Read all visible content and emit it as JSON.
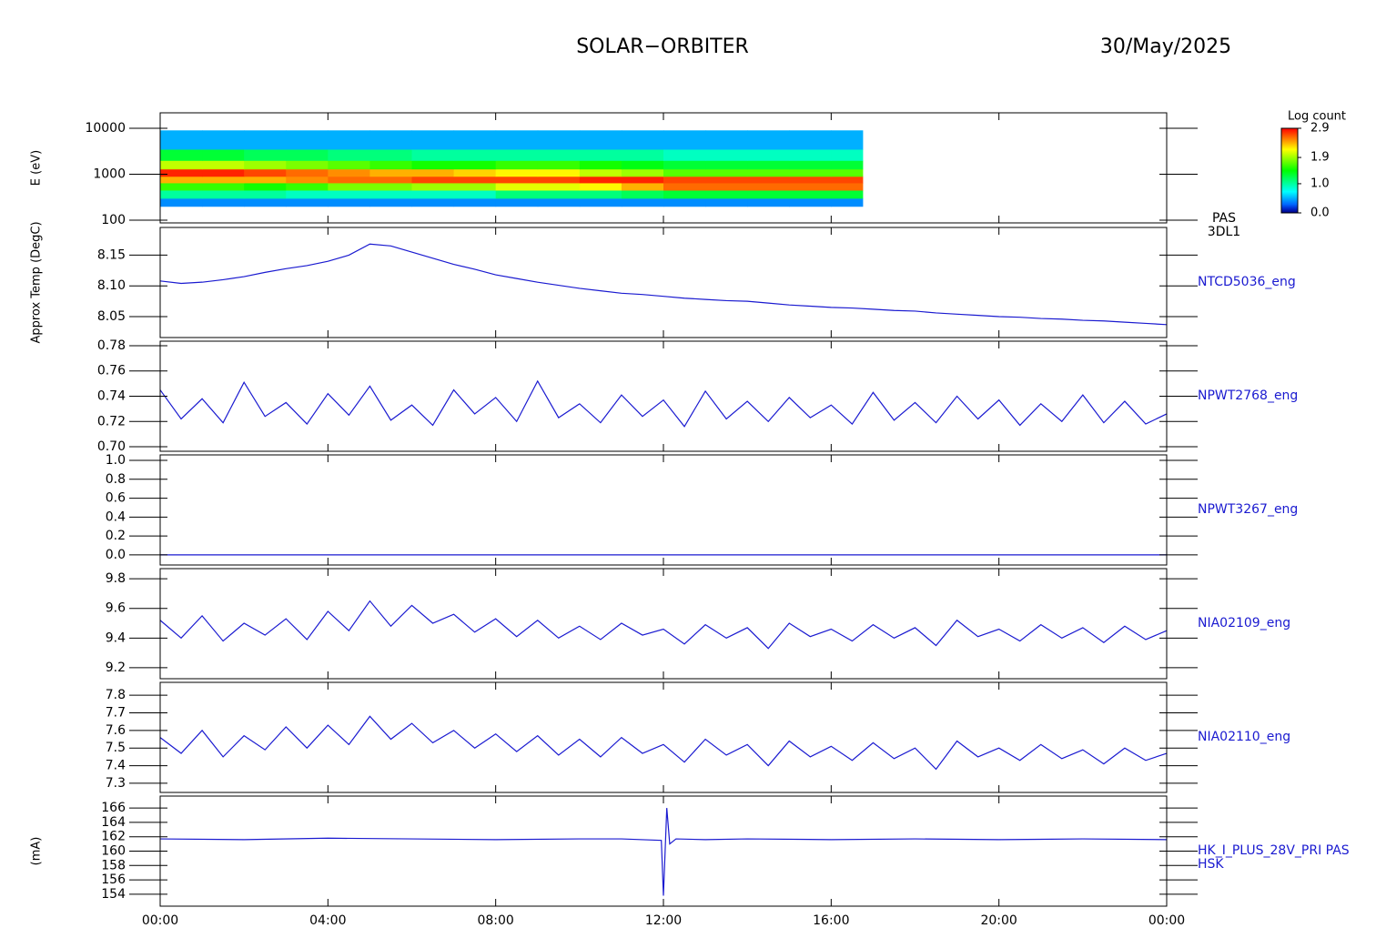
{
  "header": {
    "title": "SOLAR−ORBITER",
    "date": "30/May/2025"
  },
  "chart_data": [
    {
      "type": "heatmap",
      "ylabel": "E (eV)",
      "label": [
        "PAS",
        "3DL1"
      ],
      "log": true,
      "xlim": [
        0,
        24
      ],
      "ylim": [
        87,
        21700
      ],
      "yticks": [
        100,
        1000,
        10000
      ],
      "bins": [
        0,
        1,
        2,
        3,
        4,
        5,
        6,
        7,
        8,
        9,
        10,
        11,
        12,
        13,
        14,
        15,
        16,
        16.75
      ],
      "ybins": [
        200,
        300,
        450,
        650,
        900,
        1300,
        2000,
        3500,
        9000
      ],
      "z": [
        [
          0.4,
          0.4,
          0.4,
          0.4,
          0.4,
          0.4,
          0.4,
          0.4,
          0.4,
          0.4,
          0.4,
          0.4,
          0.4,
          0.4,
          0.4,
          0.4,
          0.4
        ],
        [
          1.0,
          1.0,
          1.0,
          0.9,
          0.9,
          0.9,
          0.9,
          0.9,
          1.1,
          1.1,
          1.1,
          1.2,
          1.3,
          1.3,
          1.3,
          1.3,
          1.3
        ],
        [
          1.6,
          1.6,
          1.5,
          1.6,
          1.8,
          1.8,
          1.9,
          1.9,
          2.1,
          2.1,
          2.2,
          2.4,
          2.6,
          2.6,
          2.6,
          2.6,
          2.6
        ],
        [
          2.4,
          2.4,
          2.4,
          2.5,
          2.6,
          2.6,
          2.7,
          2.7,
          2.7,
          2.7,
          2.8,
          2.8,
          2.7,
          2.7,
          2.7,
          2.7,
          2.7
        ],
        [
          2.8,
          2.8,
          2.7,
          2.6,
          2.5,
          2.4,
          2.4,
          2.3,
          2.2,
          2.2,
          2.0,
          1.9,
          1.7,
          1.7,
          1.7,
          1.7,
          1.7
        ],
        [
          2.0,
          2.0,
          1.9,
          1.8,
          1.7,
          1.6,
          1.5,
          1.5,
          1.6,
          1.6,
          1.5,
          1.4,
          1.3,
          1.3,
          1.3,
          1.3,
          1.3
        ],
        [
          1.3,
          1.3,
          1.2,
          1.2,
          1.1,
          1.1,
          1.0,
          1.0,
          1.0,
          1.0,
          1.0,
          1.0,
          0.9,
          0.9,
          0.9,
          0.9,
          0.9
        ],
        [
          0.5,
          0.5,
          0.5,
          0.5,
          0.5,
          0.5,
          0.5,
          0.5,
          0.5,
          0.5,
          0.5,
          0.5,
          0.5,
          0.5,
          0.5,
          0.5,
          0.5
        ]
      ],
      "colorbar": {
        "title": "Log count",
        "lim": [
          0,
          2.9
        ],
        "ticks": [
          {
            "value": 0,
            "label": "0.0"
          },
          {
            "value": 1,
            "label": "1.0"
          },
          1.9,
          2.9
        ]
      }
    },
    {
      "type": "line",
      "ylabel": "Approx Temp (DegC)",
      "label": [
        "NTCD5036_eng"
      ],
      "color": "#1a1ad0",
      "xlim": [
        0,
        24
      ],
      "ylim": [
        8.016,
        8.195
      ],
      "yticks": [
        {
          "value": 8.05,
          "label": "8.05"
        },
        {
          "value": 8.1,
          "label": "8.10"
        },
        {
          "value": 8.15,
          "label": "8.15"
        }
      ],
      "x": [
        0,
        0.5,
        1,
        1.5,
        2,
        2.5,
        3,
        3.5,
        4,
        4.5,
        5,
        5.5,
        6,
        6.5,
        7,
        7.5,
        8,
        8.5,
        9,
        9.5,
        10,
        10.5,
        11,
        11.5,
        12,
        12.5,
        13,
        13.5,
        14,
        14.5,
        15,
        15.5,
        16,
        16.5,
        17,
        17.5,
        18,
        18.5,
        19,
        19.5,
        20,
        20.5,
        21,
        21.5,
        22,
        22.5,
        23,
        23.5,
        24
      ],
      "values": [
        8.108,
        8.104,
        8.106,
        8.11,
        8.115,
        8.122,
        8.128,
        8.133,
        8.14,
        8.15,
        8.168,
        8.165,
        8.155,
        8.145,
        8.135,
        8.127,
        8.118,
        8.112,
        8.106,
        8.101,
        8.096,
        8.092,
        8.088,
        8.086,
        8.083,
        8.08,
        8.078,
        8.076,
        8.075,
        8.072,
        8.069,
        8.067,
        8.065,
        8.064,
        8.062,
        8.06,
        8.059,
        8.056,
        8.054,
        8.052,
        8.05,
        8.049,
        8.047,
        8.046,
        8.044,
        8.043,
        8.041,
        8.039,
        8.037
      ]
    },
    {
      "type": "line",
      "label": [
        "NPWT2768_eng"
      ],
      "color": "#1a1ad0",
      "xlim": [
        0,
        24
      ],
      "ylim": [
        0.6964,
        0.7836
      ],
      "yticks": [
        {
          "value": 0.7,
          "label": "0.70"
        },
        {
          "value": 0.72,
          "label": "0.72"
        },
        {
          "value": 0.74,
          "label": "0.74"
        },
        {
          "value": 0.76,
          "label": "0.76"
        },
        {
          "value": 0.78,
          "label": "0.78"
        }
      ],
      "x": [
        0,
        0.5,
        1,
        1.5,
        2,
        2.5,
        3,
        3.5,
        4,
        4.5,
        5,
        5.5,
        6,
        6.5,
        7,
        7.5,
        8,
        8.5,
        9,
        9.5,
        10,
        10.5,
        11,
        11.5,
        12,
        12.5,
        13,
        13.5,
        14,
        14.5,
        15,
        15.5,
        16,
        16.5,
        17,
        17.5,
        18,
        18.5,
        19,
        19.5,
        20,
        20.5,
        21,
        21.5,
        22,
        22.5,
        23,
        23.5,
        24
      ],
      "values": [
        0.745,
        0.722,
        0.738,
        0.719,
        0.751,
        0.724,
        0.735,
        0.718,
        0.742,
        0.725,
        0.748,
        0.721,
        0.733,
        0.717,
        0.745,
        0.726,
        0.739,
        0.72,
        0.752,
        0.723,
        0.734,
        0.719,
        0.741,
        0.724,
        0.737,
        0.716,
        0.744,
        0.722,
        0.736,
        0.72,
        0.739,
        0.723,
        0.733,
        0.718,
        0.743,
        0.721,
        0.735,
        0.719,
        0.74,
        0.722,
        0.737,
        0.717,
        0.734,
        0.72,
        0.741,
        0.719,
        0.736,
        0.718,
        0.726
      ]
    },
    {
      "type": "line",
      "label": [
        "NPWT3267_eng"
      ],
      "color": "#1a1ad0",
      "xlim": [
        0,
        24
      ],
      "ylim": [
        -0.107,
        1.058
      ],
      "yticks": [
        {
          "value": 0,
          "label": "0.0"
        },
        0.2,
        0.4,
        0.6,
        0.8,
        {
          "value": 1,
          "label": "1.0"
        }
      ],
      "x": [
        0,
        0.5,
        1,
        1.5,
        2,
        2.5,
        3,
        3.5,
        4,
        4.5,
        5,
        5.5,
        6,
        6.5,
        7,
        7.5,
        8,
        8.5,
        9,
        9.5,
        10,
        10.5,
        11,
        11.5,
        12,
        12.5,
        13,
        13.5,
        14,
        14.5,
        15,
        15.5,
        16,
        16.5,
        17,
        17.5,
        18,
        18.5,
        19,
        19.5,
        20,
        20.5,
        21,
        21.5,
        22,
        22.5,
        23,
        23.5,
        24
      ],
      "values": [
        0,
        0,
        0,
        0,
        0,
        0,
        0,
        0,
        0,
        0,
        0,
        0,
        0,
        0,
        0,
        0,
        0,
        0,
        0,
        0,
        0,
        0,
        0,
        0,
        0,
        0,
        0,
        0,
        0,
        0,
        0,
        0,
        0,
        0,
        0,
        0,
        0,
        0,
        0,
        0,
        0,
        0,
        0,
        0,
        0,
        0,
        0,
        0,
        0
      ]
    },
    {
      "type": "line",
      "label": [
        "NIA02109_eng"
      ],
      "color": "#1a1ad0",
      "xlim": [
        0,
        24
      ],
      "ylim": [
        9.126,
        9.868
      ],
      "yticks": [
        9.2,
        9.4,
        9.6,
        9.8
      ],
      "x": [
        0,
        0.5,
        1,
        1.5,
        2,
        2.5,
        3,
        3.5,
        4,
        4.5,
        5,
        5.5,
        6,
        6.5,
        7,
        7.5,
        8,
        8.5,
        9,
        9.5,
        10,
        10.5,
        11,
        11.5,
        12,
        12.5,
        13,
        13.5,
        14,
        14.5,
        15,
        15.5,
        16,
        16.5,
        17,
        17.5,
        18,
        18.5,
        19,
        19.5,
        20,
        20.5,
        21,
        21.5,
        22,
        22.5,
        23,
        23.5,
        24
      ],
      "values": [
        9.52,
        9.4,
        9.55,
        9.38,
        9.5,
        9.42,
        9.53,
        9.39,
        9.58,
        9.45,
        9.65,
        9.48,
        9.62,
        9.5,
        9.56,
        9.44,
        9.53,
        9.41,
        9.52,
        9.4,
        9.48,
        9.39,
        9.5,
        9.42,
        9.46,
        9.36,
        9.49,
        9.4,
        9.47,
        9.33,
        9.5,
        9.41,
        9.46,
        9.38,
        9.49,
        9.4,
        9.47,
        9.35,
        9.52,
        9.41,
        9.46,
        9.38,
        9.49,
        9.4,
        9.47,
        9.37,
        9.48,
        9.39,
        9.45
      ]
    },
    {
      "type": "line",
      "label": [
        "NIA02110_eng"
      ],
      "color": "#1a1ad0",
      "xlim": [
        0,
        24
      ],
      "ylim": [
        7.248,
        7.873
      ],
      "yticks": [
        7.3,
        7.4,
        7.5,
        7.6,
        7.7,
        7.8
      ],
      "x": [
        0,
        0.5,
        1,
        1.5,
        2,
        2.5,
        3,
        3.5,
        4,
        4.5,
        5,
        5.5,
        6,
        6.5,
        7,
        7.5,
        8,
        8.5,
        9,
        9.5,
        10,
        10.5,
        11,
        11.5,
        12,
        12.5,
        13,
        13.5,
        14,
        14.5,
        15,
        15.5,
        16,
        16.5,
        17,
        17.5,
        18,
        18.5,
        19,
        19.5,
        20,
        20.5,
        21,
        21.5,
        22,
        22.5,
        23,
        23.5,
        24
      ],
      "values": [
        7.56,
        7.47,
        7.6,
        7.45,
        7.57,
        7.49,
        7.62,
        7.5,
        7.63,
        7.52,
        7.68,
        7.55,
        7.64,
        7.53,
        7.6,
        7.5,
        7.58,
        7.48,
        7.57,
        7.46,
        7.55,
        7.45,
        7.56,
        7.47,
        7.52,
        7.42,
        7.55,
        7.46,
        7.52,
        7.4,
        7.54,
        7.45,
        7.51,
        7.43,
        7.53,
        7.44,
        7.5,
        7.38,
        7.54,
        7.45,
        7.5,
        7.43,
        7.52,
        7.44,
        7.49,
        7.41,
        7.5,
        7.43,
        7.47
      ]
    },
    {
      "type": "line",
      "ylabel": "(mA)",
      "label": [
        "HK_I_PLUS_28V_PRI PAS",
        "HSK"
      ],
      "color": "#1a1ad0",
      "xlim": [
        0,
        24
      ],
      "ylim": [
        152.34,
        167.66
      ],
      "yticks": [
        154,
        156,
        158,
        160,
        162,
        164,
        166
      ],
      "xticks": [
        {
          "value": 0,
          "label": "00:00"
        },
        {
          "value": 4,
          "label": "04:00"
        },
        {
          "value": 8,
          "label": "08:00"
        },
        {
          "value": 12,
          "label": "12:00"
        },
        {
          "value": 16,
          "label": "16:00"
        },
        {
          "value": 20,
          "label": "20:00"
        },
        {
          "value": 24,
          "label": "00:00"
        }
      ],
      "x": [
        0,
        2,
        4,
        6,
        8,
        10,
        11,
        11.95,
        12,
        12.08,
        12.15,
        12.3,
        13,
        14,
        16,
        18,
        20,
        22,
        24
      ],
      "values": [
        161.7,
        161.6,
        161.8,
        161.7,
        161.6,
        161.7,
        161.7,
        161.5,
        153.8,
        166.0,
        161.0,
        161.7,
        161.6,
        161.7,
        161.6,
        161.7,
        161.6,
        161.7,
        161.6
      ]
    }
  ]
}
